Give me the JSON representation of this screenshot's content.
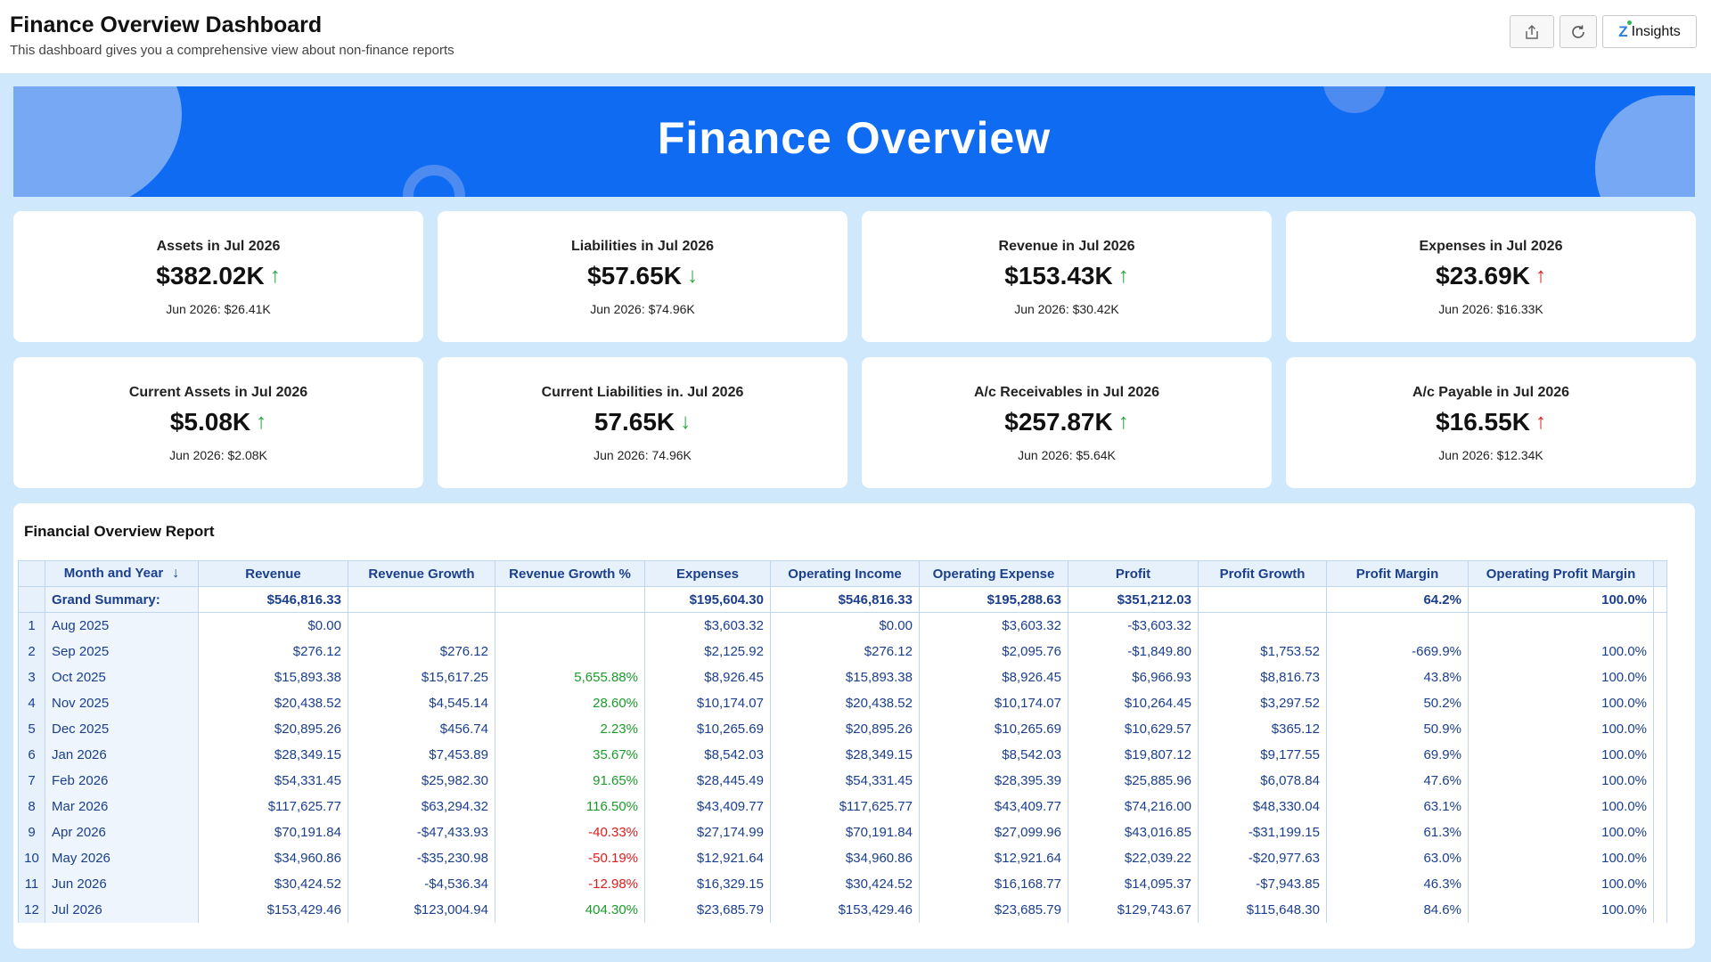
{
  "header": {
    "title": "Finance Overview Dashboard",
    "subtitle": "This dashboard gives you a comprehensive view about non-finance reports",
    "share_icon": "share-icon",
    "refresh_icon": "refresh-icon",
    "insights_label": "Insights",
    "insights_icon": "zia-insights-icon"
  },
  "banner": {
    "title": "Finance Overview"
  },
  "kpis": [
    {
      "title": "Assets in Jul 2026",
      "value": "$382.02K",
      "arrow": "↑",
      "trend": "up-green",
      "prev": "Jun 2026: $26.41K"
    },
    {
      "title": "Liabilities in Jul 2026",
      "value": "$57.65K",
      "arrow": "↓",
      "trend": "down-green",
      "prev": "Jun 2026: $74.96K"
    },
    {
      "title": "Revenue in Jul 2026",
      "value": "$153.43K",
      "arrow": "↑",
      "trend": "up-green",
      "prev": "Jun 2026: $30.42K"
    },
    {
      "title": "Expenses in Jul 2026",
      "value": "$23.69K",
      "arrow": "↑",
      "trend": "up-red",
      "prev": "Jun 2026: $16.33K"
    },
    {
      "title": "Current Assets in Jul 2026",
      "value": "$5.08K",
      "arrow": "↑",
      "trend": "up-green",
      "prev": "Jun 2026: $2.08K"
    },
    {
      "title": "Current Liabilities in. Jul 2026",
      "value": "57.65K",
      "arrow": "↓",
      "trend": "down-green",
      "prev": "Jun 2026: 74.96K"
    },
    {
      "title": "A/c Receivables in Jul 2026",
      "value": "$257.87K",
      "arrow": "↑",
      "trend": "up-green",
      "prev": "Jun 2026: $5.64K"
    },
    {
      "title": "A/c Payable in Jul 2026",
      "value": "$16.55K",
      "arrow": "↑",
      "trend": "up-red",
      "prev": "Jun 2026: $12.34K"
    }
  ],
  "report": {
    "title": "Financial Overview Report",
    "columns": [
      "Month and Year",
      "Revenue",
      "Revenue Growth",
      "Revenue Growth %",
      "Expenses",
      "Operating Income",
      "Operating Expense",
      "Profit",
      "Profit Growth",
      "Profit Margin",
      "Operating Profit Margin"
    ],
    "sort_icon": "sort-descending-icon",
    "summary": [
      "Grand Summary:",
      "$546,816.33",
      "",
      "",
      "$195,604.30",
      "$546,816.33",
      "$195,288.63",
      "$351,212.03",
      "",
      "64.2%",
      "100.0%"
    ],
    "rows": [
      [
        "1",
        "Aug 2025",
        "$0.00",
        "",
        "",
        "$3,603.32",
        "$0.00",
        "$3,603.32",
        "-$3,603.32",
        "",
        "",
        ""
      ],
      [
        "2",
        "Sep 2025",
        "$276.12",
        "$276.12",
        "",
        "$2,125.92",
        "$276.12",
        "$2,095.76",
        "-$1,849.80",
        "$1,753.52",
        "-669.9%",
        "100.0%"
      ],
      [
        "3",
        "Oct 2025",
        "$15,893.38",
        "$15,617.25",
        "5,655.88%",
        "$8,926.45",
        "$15,893.38",
        "$8,926.45",
        "$6,966.93",
        "$8,816.73",
        "43.8%",
        "100.0%"
      ],
      [
        "4",
        "Nov 2025",
        "$20,438.52",
        "$4,545.14",
        "28.60%",
        "$10,174.07",
        "$20,438.52",
        "$10,174.07",
        "$10,264.45",
        "$3,297.52",
        "50.2%",
        "100.0%"
      ],
      [
        "5",
        "Dec 2025",
        "$20,895.26",
        "$456.74",
        "2.23%",
        "$10,265.69",
        "$20,895.26",
        "$10,265.69",
        "$10,629.57",
        "$365.12",
        "50.9%",
        "100.0%"
      ],
      [
        "6",
        "Jan 2026",
        "$28,349.15",
        "$7,453.89",
        "35.67%",
        "$8,542.03",
        "$28,349.15",
        "$8,542.03",
        "$19,807.12",
        "$9,177.55",
        "69.9%",
        "100.0%"
      ],
      [
        "7",
        "Feb 2026",
        "$54,331.45",
        "$25,982.30",
        "91.65%",
        "$28,445.49",
        "$54,331.45",
        "$28,395.39",
        "$25,885.96",
        "$6,078.84",
        "47.6%",
        "100.0%"
      ],
      [
        "8",
        "Mar 2026",
        "$117,625.77",
        "$63,294.32",
        "116.50%",
        "$43,409.77",
        "$117,625.77",
        "$43,409.77",
        "$74,216.00",
        "$48,330.04",
        "63.1%",
        "100.0%"
      ],
      [
        "9",
        "Apr 2026",
        "$70,191.84",
        "-$47,433.93",
        "-40.33%",
        "$27,174.99",
        "$70,191.84",
        "$27,099.96",
        "$43,016.85",
        "-$31,199.15",
        "61.3%",
        "100.0%"
      ],
      [
        "10",
        "May 2026",
        "$34,960.86",
        "-$35,230.98",
        "-50.19%",
        "$12,921.64",
        "$34,960.86",
        "$12,921.64",
        "$22,039.22",
        "-$20,977.63",
        "63.0%",
        "100.0%"
      ],
      [
        "11",
        "Jun 2026",
        "$30,424.52",
        "-$4,536.34",
        "-12.98%",
        "$16,329.15",
        "$30,424.52",
        "$16,168.77",
        "$14,095.37",
        "-$7,943.85",
        "46.3%",
        "100.0%"
      ],
      [
        "12",
        "Jul 2026",
        "$153,429.46",
        "$123,004.94",
        "404.30%",
        "$23,685.79",
        "$153,429.46",
        "$23,685.79",
        "$129,743.67",
        "$115,648.30",
        "84.6%",
        "100.0%"
      ]
    ]
  }
}
